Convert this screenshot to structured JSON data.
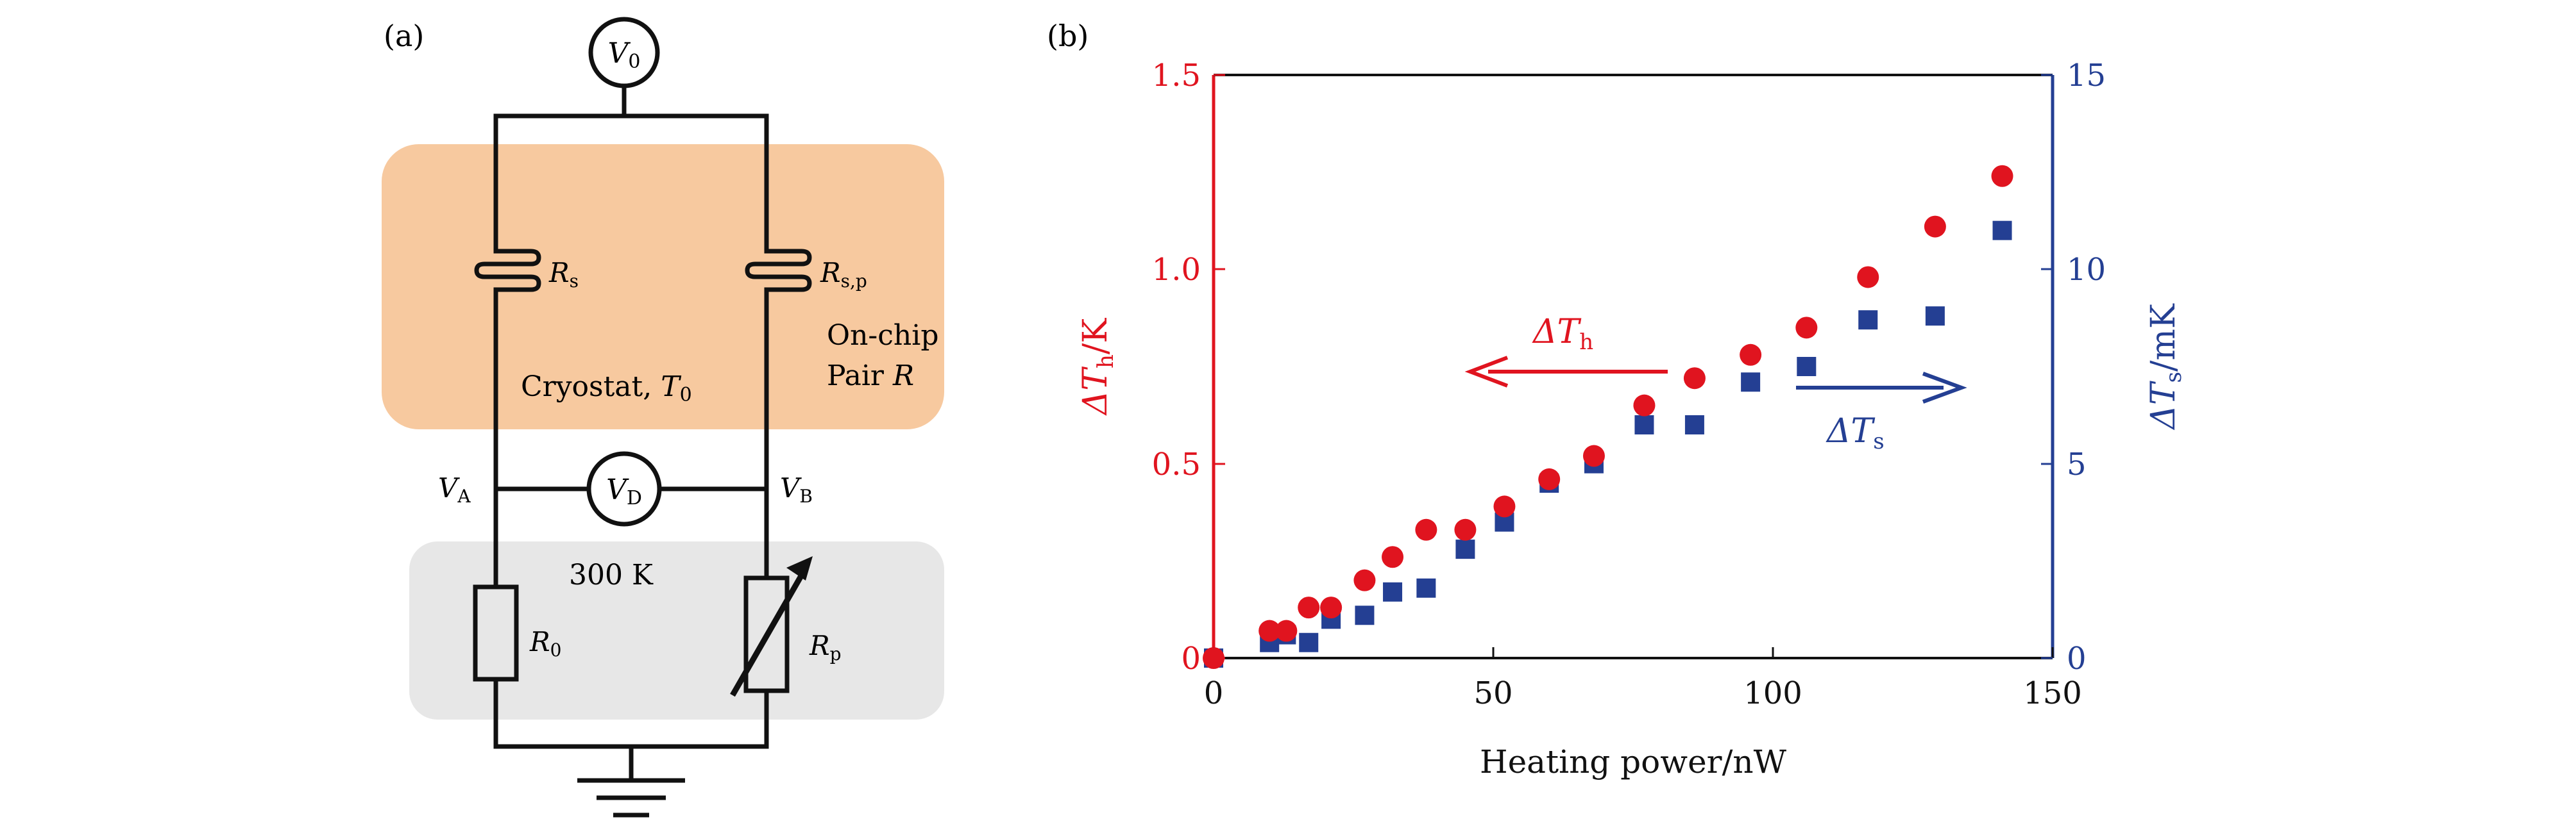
{
  "colors": {
    "red": "#e0141f",
    "blue": "#243f93",
    "orange_region": "#f7c99f",
    "gray_region": "#e7e7e7",
    "black": "#111111"
  },
  "panel_a": {
    "label": "(a)",
    "voltmeters": {
      "v0": {
        "main": "V",
        "sub": "0"
      },
      "vd": {
        "main": "V",
        "sub": "D"
      }
    },
    "nodes": {
      "va": {
        "main": "V",
        "sub": "A"
      },
      "vb": {
        "main": "V",
        "sub": "B"
      }
    },
    "resistors": {
      "rs": {
        "main": "R",
        "sub": "s"
      },
      "rsp": {
        "main": "R",
        "sub": "s,p"
      },
      "r0": {
        "main": "R",
        "sub": "0"
      },
      "rp": {
        "main": "R",
        "sub": "p"
      }
    },
    "cryostat": {
      "text": "Cryostat, ",
      "var": "T",
      "sub": "0"
    },
    "onchip": {
      "line1": "On-chip",
      "line2_text": "Pair ",
      "line2_var": "R"
    },
    "room_temp": "300 K"
  },
  "panel_b": {
    "label": "(b)",
    "arrow_h": {
      "prefix": "ΔT",
      "sub": "h"
    },
    "arrow_s": {
      "prefix": "ΔT",
      "sub": "s"
    }
  },
  "chart_data": {
    "type": "scatter",
    "xlabel": "Heating power/nW",
    "ylabel_left": {
      "prefix": "ΔT",
      "sub": "h",
      "suffix": "/K"
    },
    "ylabel_right": {
      "prefix": "ΔT",
      "sub": "s",
      "suffix": "/mK"
    },
    "xlim": [
      0,
      150
    ],
    "ylim_left": [
      0,
      1.5
    ],
    "ylim_right": [
      0,
      15
    ],
    "x_ticks": [
      "0",
      "50",
      "100",
      "150"
    ],
    "y_left_ticks": [
      "0",
      "0.5",
      "1.0",
      "1.5"
    ],
    "y_right_ticks": [
      "0",
      "5",
      "10",
      "15"
    ],
    "series": [
      {
        "name": "ΔTh",
        "axis": "left",
        "marker": "circle",
        "color": "#e0141f",
        "x": [
          0,
          10,
          13,
          17,
          21,
          27,
          32,
          38,
          45,
          52,
          60,
          68,
          77,
          86,
          96,
          106,
          117,
          129,
          141
        ],
        "y": [
          0.0,
          0.07,
          0.07,
          0.13,
          0.13,
          0.2,
          0.26,
          0.33,
          0.33,
          0.39,
          0.46,
          0.52,
          0.65,
          0.72,
          0.78,
          0.85,
          0.98,
          1.11,
          1.24
        ]
      },
      {
        "name": "ΔTs",
        "axis": "right",
        "marker": "square",
        "color": "#243f93",
        "x": [
          0,
          10,
          13,
          17,
          21,
          27,
          32,
          38,
          45,
          52,
          60,
          68,
          77,
          86,
          96,
          106,
          117,
          129,
          141
        ],
        "y": [
          0.0,
          0.4,
          0.6,
          0.4,
          1.0,
          1.1,
          1.7,
          1.8,
          2.8,
          3.5,
          4.5,
          5.0,
          6.0,
          6.0,
          7.1,
          7.5,
          8.7,
          8.8,
          11.0
        ]
      }
    ]
  }
}
